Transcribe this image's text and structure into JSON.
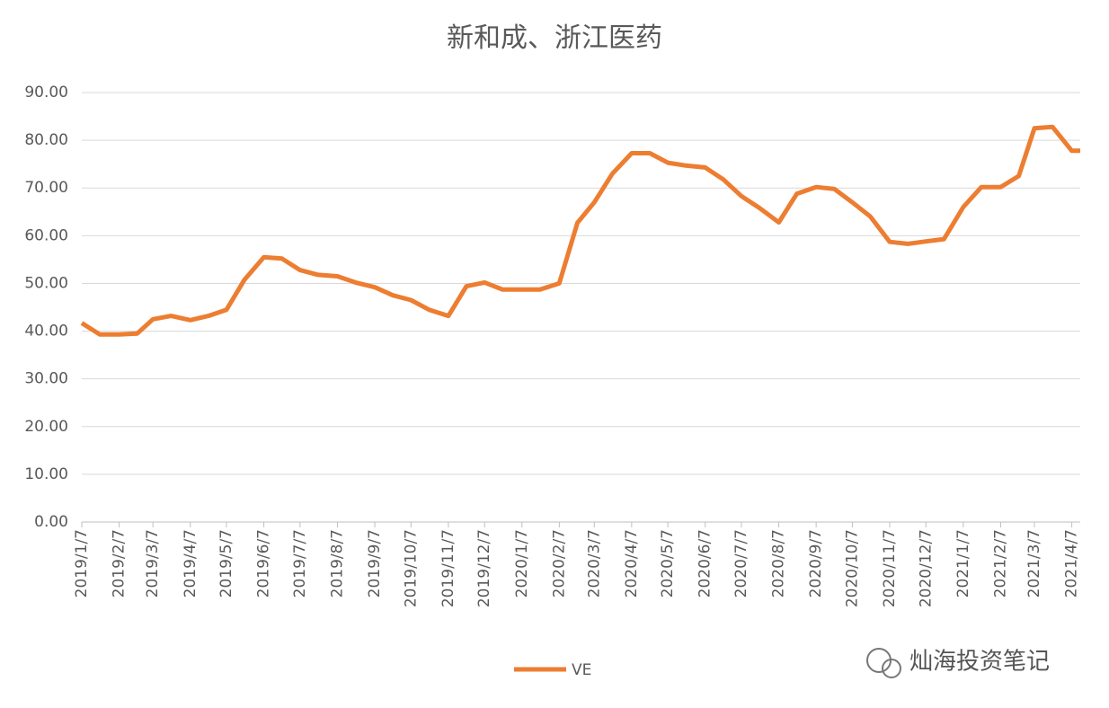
{
  "chart_data": {
    "type": "line",
    "title": "新和成、浙江医药",
    "x": [
      "2019/1/7",
      "2019/1/22",
      "2019/2/7",
      "2019/2/22",
      "2019/3/7",
      "2019/3/22",
      "2019/4/7",
      "2019/4/22",
      "2019/5/7",
      "2019/5/22",
      "2019/6/7",
      "2019/6/22",
      "2019/7/7",
      "2019/7/22",
      "2019/8/7",
      "2019/8/22",
      "2019/9/7",
      "2019/9/22",
      "2019/10/7",
      "2019/10/22",
      "2019/11/7",
      "2019/11/22",
      "2019/12/7",
      "2019/12/22",
      "2020/1/7",
      "2020/1/22",
      "2020/2/7",
      "2020/2/22",
      "2020/3/7",
      "2020/3/22",
      "2020/4/7",
      "2020/4/22",
      "2020/5/7",
      "2020/5/22",
      "2020/6/7",
      "2020/6/22",
      "2020/7/7",
      "2020/7/22",
      "2020/8/7",
      "2020/8/22",
      "2020/9/7",
      "2020/9/22",
      "2020/10/7",
      "2020/10/22",
      "2020/11/7",
      "2020/11/22",
      "2020/12/7",
      "2020/12/22",
      "2021/1/7",
      "2021/1/22",
      "2021/2/7",
      "2021/2/22",
      "2021/3/7",
      "2021/3/22",
      "2021/4/7",
      "2021/4/14"
    ],
    "series": [
      {
        "name": "VE",
        "color": "#ed7d31",
        "values": [
          41.7,
          39.3,
          39.3,
          39.5,
          42.5,
          43.2,
          42.3,
          43.2,
          44.5,
          50.8,
          55.5,
          55.2,
          52.8,
          51.8,
          51.5,
          50.2,
          49.2,
          47.5,
          46.5,
          44.5,
          43.2,
          49.4,
          50.2,
          48.7,
          48.7,
          48.7,
          50,
          62.7,
          67,
          73,
          77.3,
          77.3,
          75.3,
          74.7,
          74.3,
          71.8,
          68.3,
          65.8,
          62.8,
          68.8,
          70.2,
          69.8,
          67,
          64,
          58.7,
          58.3,
          58.8,
          59.3,
          66,
          70.2,
          70.2,
          72.5,
          82.5,
          82.8,
          77.8,
          77.8
        ]
      }
    ],
    "xlim": [
      "2019/1/7",
      "2021/4/14"
    ],
    "xticks": [
      "2019/1/7",
      "2019/2/7",
      "2019/3/7",
      "2019/4/7",
      "2019/5/7",
      "2019/6/7",
      "2019/7/7",
      "2019/8/7",
      "2019/9/7",
      "2019/10/7",
      "2019/11/7",
      "2019/12/7",
      "2020/1/7",
      "2020/2/7",
      "2020/3/7",
      "2020/4/7",
      "2020/5/7",
      "2020/6/7",
      "2020/7/7",
      "2020/8/7",
      "2020/9/7",
      "2020/10/7",
      "2020/11/7",
      "2020/12/7",
      "2021/1/7",
      "2021/2/7",
      "2021/3/7",
      "2021/4/7"
    ],
    "ylim": [
      0,
      90
    ],
    "yticks": [
      {
        "value": 0,
        "label": "0.00"
      },
      {
        "value": 10,
        "label": "10.00"
      },
      {
        "value": 20,
        "label": "20.00"
      },
      {
        "value": 30,
        "label": "30.00"
      },
      {
        "value": 40,
        "label": "40.00"
      },
      {
        "value": 50,
        "label": "50.00"
      },
      {
        "value": 60,
        "label": "60.00"
      },
      {
        "value": 70,
        "label": "70.00"
      },
      {
        "value": 80,
        "label": "80.00"
      },
      {
        "value": 90,
        "label": "90.00"
      }
    ],
    "grid": true,
    "legend": "bottom",
    "watermark": "灿海投资笔记"
  }
}
